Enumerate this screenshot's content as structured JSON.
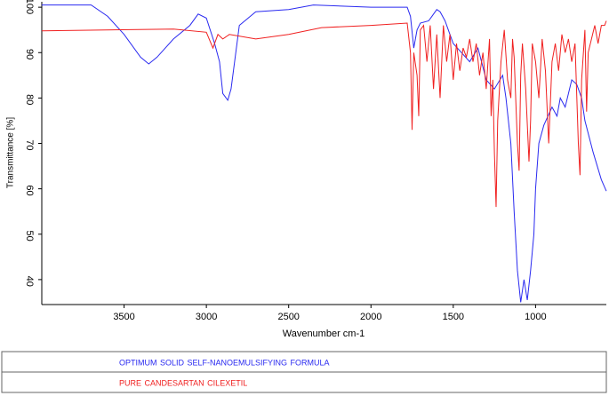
{
  "chart_data": {
    "type": "line",
    "xlabel": "Wavenumber cm-1",
    "ylabel": "Transmittance [%]",
    "xlim": [
      4000,
      570
    ],
    "ylim": [
      34.5,
      101.2
    ],
    "xticks": [
      3500,
      3000,
      2500,
      2000,
      1500,
      1000
    ],
    "yticks": [
      40,
      50,
      60,
      70,
      80,
      90,
      100
    ],
    "grid": false,
    "series": [
      {
        "name": "OPTIMUM SOLID SELF-NANOEMULSIFYING FORMULA",
        "color": "#2a2af0",
        "x": [
          4000,
          3700,
          3600,
          3500,
          3400,
          3350,
          3300,
          3200,
          3100,
          3050,
          3000,
          2950,
          2920,
          2900,
          2870,
          2850,
          2800,
          2700,
          2500,
          2350,
          2000,
          1780,
          1760,
          1740,
          1720,
          1700,
          1650,
          1630,
          1600,
          1580,
          1550,
          1520,
          1500,
          1450,
          1400,
          1350,
          1300,
          1250,
          1200,
          1180,
          1150,
          1130,
          1110,
          1090,
          1070,
          1050,
          1030,
          1010,
          1000,
          980,
          950,
          900,
          870,
          850,
          820,
          780,
          750,
          720,
          700,
          650,
          600,
          570
        ],
        "values": [
          100.5,
          100.5,
          98,
          94,
          89,
          87.5,
          89,
          93,
          96,
          98.5,
          97.6,
          92,
          88,
          81,
          79.5,
          82,
          96,
          99,
          99.5,
          100.5,
          100,
          100,
          98,
          91,
          95,
          96.5,
          97,
          98,
          99.5,
          99,
          97,
          94,
          92,
          90,
          88,
          91,
          84,
          82,
          85,
          80,
          70,
          55,
          42,
          35,
          40,
          35.5,
          42,
          50,
          60,
          70,
          74,
          78,
          76,
          80,
          78,
          84,
          83,
          80,
          75,
          68,
          62,
          59.5
        ]
      },
      {
        "name": "PURE CANDESARTAN CILEXETIL",
        "color": "#f02020",
        "x": [
          4000,
          3200,
          3000,
          2960,
          2930,
          2900,
          2860,
          2700,
          2500,
          2300,
          2000,
          1780,
          1760,
          1750,
          1740,
          1720,
          1710,
          1700,
          1680,
          1660,
          1640,
          1620,
          1600,
          1580,
          1560,
          1540,
          1520,
          1500,
          1480,
          1460,
          1440,
          1420,
          1400,
          1380,
          1360,
          1340,
          1320,
          1300,
          1280,
          1270,
          1260,
          1250,
          1240,
          1230,
          1210,
          1190,
          1170,
          1150,
          1140,
          1130,
          1110,
          1100,
          1090,
          1080,
          1060,
          1040,
          1030,
          1020,
          1000,
          980,
          960,
          940,
          920,
          900,
          880,
          860,
          840,
          820,
          800,
          780,
          760,
          740,
          730,
          720,
          700,
          690,
          680,
          660,
          640,
          620,
          600,
          580,
          570
        ],
        "values": [
          94.8,
          95.2,
          94.5,
          91,
          94,
          93,
          94,
          93,
          94,
          95.5,
          96,
          96.5,
          90,
          73,
          90,
          85,
          76,
          95,
          96,
          88,
          96,
          82,
          94,
          80,
          96,
          88,
          94,
          84,
          92,
          86,
          91,
          89,
          93,
          88,
          92,
          85,
          90,
          82,
          93,
          76,
          84,
          68,
          56,
          75,
          88,
          95,
          84,
          80,
          93,
          89,
          70,
          64,
          85,
          92,
          82,
          66,
          75,
          92,
          88,
          80,
          93,
          86,
          70,
          88,
          92,
          86,
          94,
          90,
          93,
          88,
          92,
          70,
          63,
          84,
          95,
          77,
          90,
          93,
          96,
          92,
          96,
          96,
          97
        ]
      }
    ]
  }
}
